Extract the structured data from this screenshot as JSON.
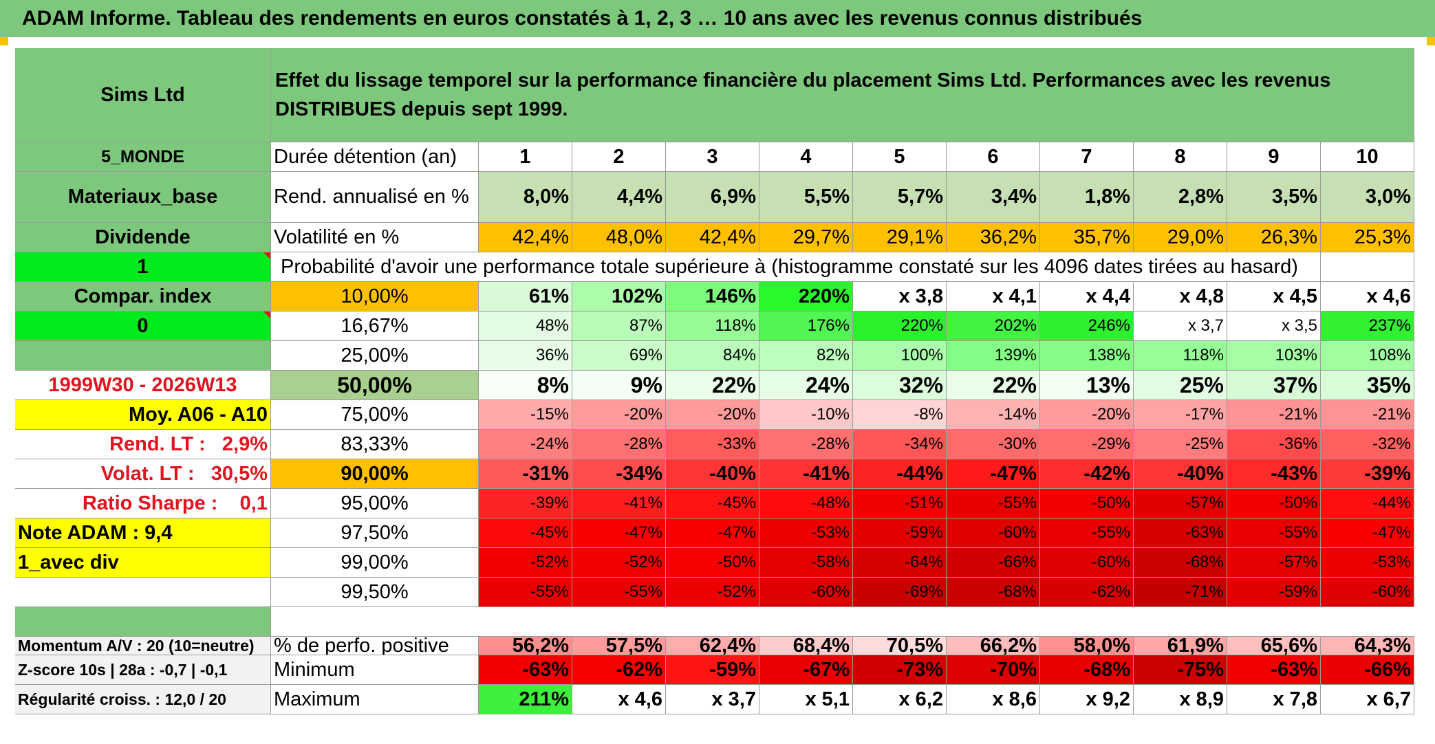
{
  "title": "ADAM Informe. Tableau des rendements en euros constatés à 1, 2, 3 … 10 ans avec les revenus connus distribués",
  "header": {
    "fund_name": "Sims Ltd",
    "description": "Effet du lissage temporel sur la performance financière du placement Sims Ltd. Performances avec les revenus DISTRIBUES depuis sept 1999."
  },
  "side": {
    "zone": "5_MONDE",
    "sector": "Materiaux_base",
    "income_type": "Dividende",
    "selector_1": "1",
    "compare_label": "Compar. index",
    "selector_0": "0",
    "period": "1999W30 - 2026W13",
    "avg_label": "Moy. A06 - A10",
    "rend_lt": "Rend. LT :   2,9%",
    "volat_lt": "Volat. LT :   30,5%",
    "sharpe": "Ratio Sharpe :    0,1",
    "note": "Note ADAM : 9,4",
    "mode": "1_avec div",
    "momentum": "Momentum A/V : 20 (10=neutre)",
    "zscore": "Z-score 10s | 28a : -0,7 | -0,1",
    "regularite": "Régularité croiss. : 12,0 / 20"
  },
  "labels": {
    "duration": "Durée détention (an)",
    "rend": "Rend. annualisé en %",
    "vol": "Volatilité en %",
    "prob": "Probabilité d'avoir une performance totale supérieure à (histogramme constaté sur les 4096 dates tirées au hasard)",
    "pos": "% de perfo. positive",
    "min": "Minimum",
    "max": "Maximum"
  },
  "years": [
    "1",
    "2",
    "3",
    "4",
    "5",
    "6",
    "7",
    "8",
    "9",
    "10"
  ],
  "rend": [
    "8,0%",
    "4,4%",
    "6,9%",
    "5,5%",
    "5,7%",
    "3,4%",
    "1,8%",
    "2,8%",
    "3,5%",
    "3,0%"
  ],
  "vol": [
    "42,4%",
    "48,0%",
    "42,4%",
    "29,7%",
    "29,1%",
    "36,2%",
    "35,7%",
    "29,0%",
    "26,3%",
    "25,3%"
  ],
  "quantiles": [
    {
      "q": "10,00%",
      "vals": [
        "61%",
        "102%",
        "146%",
        "220%",
        "x 3,8",
        "x 4,1",
        "x 4,4",
        "x 4,8",
        "x 4,5",
        "x 4,6"
      ]
    },
    {
      "q": "16,67%",
      "vals": [
        "48%",
        "87%",
        "118%",
        "176%",
        "220%",
        "202%",
        "246%",
        "x 3,7",
        "x 3,5",
        "237%"
      ]
    },
    {
      "q": "25,00%",
      "vals": [
        "36%",
        "69%",
        "84%",
        "82%",
        "100%",
        "139%",
        "138%",
        "118%",
        "103%",
        "108%"
      ]
    },
    {
      "q": "50,00%",
      "vals": [
        "8%",
        "9%",
        "22%",
        "24%",
        "32%",
        "22%",
        "13%",
        "25%",
        "37%",
        "35%"
      ]
    },
    {
      "q": "75,00%",
      "vals": [
        "-15%",
        "-20%",
        "-20%",
        "-10%",
        "-8%",
        "-14%",
        "-20%",
        "-17%",
        "-21%",
        "-21%"
      ]
    },
    {
      "q": "83,33%",
      "vals": [
        "-24%",
        "-28%",
        "-33%",
        "-28%",
        "-34%",
        "-30%",
        "-29%",
        "-25%",
        "-36%",
        "-32%"
      ]
    },
    {
      "q": "90,00%",
      "vals": [
        "-31%",
        "-34%",
        "-40%",
        "-41%",
        "-44%",
        "-47%",
        "-42%",
        "-40%",
        "-43%",
        "-39%"
      ]
    },
    {
      "q": "95,00%",
      "vals": [
        "-39%",
        "-41%",
        "-45%",
        "-48%",
        "-51%",
        "-55%",
        "-50%",
        "-57%",
        "-50%",
        "-44%"
      ]
    },
    {
      "q": "97,50%",
      "vals": [
        "-45%",
        "-47%",
        "-47%",
        "-53%",
        "-59%",
        "-60%",
        "-55%",
        "-63%",
        "-55%",
        "-47%"
      ]
    },
    {
      "q": "99,00%",
      "vals": [
        "-52%",
        "-52%",
        "-50%",
        "-58%",
        "-64%",
        "-66%",
        "-60%",
        "-68%",
        "-57%",
        "-53%"
      ]
    },
    {
      "q": "99,50%",
      "vals": [
        "-55%",
        "-55%",
        "-52%",
        "-60%",
        "-69%",
        "-68%",
        "-62%",
        "-71%",
        "-59%",
        "-60%"
      ]
    }
  ],
  "pos": [
    "56,2%",
    "57,5%",
    "62,4%",
    "68,4%",
    "70,5%",
    "66,2%",
    "58,0%",
    "61,9%",
    "65,6%",
    "64,3%"
  ],
  "min": [
    "-63%",
    "-62%",
    "-59%",
    "-67%",
    "-73%",
    "-70%",
    "-68%",
    "-75%",
    "-63%",
    "-66%"
  ],
  "max": [
    "211%",
    "x 4,6",
    "x 3,7",
    "x 5,1",
    "x 6,2",
    "x 8,6",
    "x 9,2",
    "x 8,9",
    "x 7,8",
    "x 6,7"
  ],
  "colors": {
    "header_green": "#7ec87e",
    "light_green": "#a9d08e",
    "rend_fill": "#c6e0b4",
    "lime": "#00ea1e",
    "orange": "#ffc000",
    "yellow": "#ffff00",
    "red_text": "#e0141e",
    "quantile_fills": [
      [
        "#d9f9d9",
        "#acfcac",
        "#7cfd7c",
        "#29f829",
        "#ffffff",
        "#ffffff",
        "#ffffff",
        "#ffffff",
        "#ffffff",
        "#ffffff"
      ],
      [
        "#e2fbe2",
        "#b8fcb8",
        "#96fd96",
        "#52f652",
        "#2af12a",
        "#42f342",
        "#2ef02e",
        "#ffffff",
        "#ffffff",
        "#33f033"
      ],
      [
        "#e8fce8",
        "#cafdca",
        "#bbfebb",
        "#bdfebd",
        "#abfdab",
        "#85fc85",
        "#86fc86",
        "#97fd97",
        "#a5fea5",
        "#a0fda0"
      ],
      [
        "#f6fef6",
        "#f4fef4",
        "#e9fde9",
        "#e6fde6",
        "#dcfddc",
        "#e9fde9",
        "#f1fef1",
        "#e3fde3",
        "#d6fbd6",
        "#d9fcd9"
      ],
      [
        "#ffabab",
        "#ff9b9b",
        "#ff9b9b",
        "#ffc8c8",
        "#ffd4d4",
        "#ffb2b2",
        "#ff9b9b",
        "#ffa4a4",
        "#ff9292",
        "#ff9292"
      ],
      [
        "#ff8080",
        "#ff7070",
        "#ff5c5c",
        "#ff7070",
        "#ff5757",
        "#ff6a6a",
        "#ff6d6d",
        "#ff7c7c",
        "#ff4b4b",
        "#ff6060"
      ],
      [
        "#ff5a5a",
        "#ff4d4d",
        "#ff3636",
        "#ff3333",
        "#ff2424",
        "#ff1a1a",
        "#ff2e2e",
        "#ff3636",
        "#ff2a2a",
        "#ff3a3a"
      ],
      [
        "#ff2424",
        "#ff1e1e",
        "#ff1414",
        "#ff0c0c",
        "#f00000",
        "#e80000",
        "#f20000",
        "#e00000",
        "#f20000",
        "#ff1010"
      ],
      [
        "#ff0a0a",
        "#fb0000",
        "#fb0000",
        "#ee0000",
        "#e20000",
        "#e00000",
        "#ea0000",
        "#d80000",
        "#ea0000",
        "#fb0000"
      ],
      [
        "#f20000",
        "#f20000",
        "#f60000",
        "#e40000",
        "#d60000",
        "#d20000",
        "#de0000",
        "#cc0000",
        "#e40000",
        "#ec0000"
      ],
      [
        "#ea0000",
        "#ea0000",
        "#ee0000",
        "#de0000",
        "#c80000",
        "#cc0000",
        "#d80000",
        "#c40000",
        "#e00000",
        "#de0000"
      ]
    ],
    "pos_fills": [
      "#ff8e8e",
      "#ff9b9b",
      "#ffacac",
      "#ffcccc",
      "#ffdcdc",
      "#ffbcbc",
      "#ff9090",
      "#ffa6a6",
      "#ffbfbf",
      "#ffb6b6"
    ],
    "min_fills": [
      "#f20000",
      "#f60000",
      "#ff1414",
      "#ea0000",
      "#d20000",
      "#de0000",
      "#e80000",
      "#cc0000",
      "#f20000",
      "#ea0000"
    ],
    "max_fills": [
      "#3cf03c",
      "#ffffff",
      "#ffffff",
      "#ffffff",
      "#ffffff",
      "#ffffff",
      "#ffffff",
      "#ffffff",
      "#ffffff",
      "#ffffff"
    ]
  }
}
